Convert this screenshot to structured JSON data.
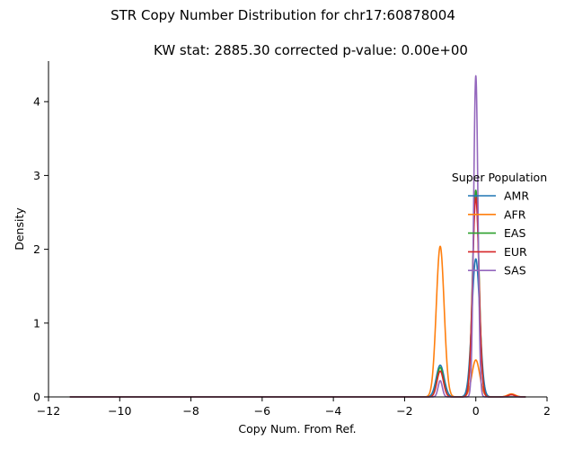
{
  "chart_data": {
    "type": "line",
    "suptitle": "STR Copy Number Distribution for chr17:60878004",
    "title": "KW stat: 2885.30    corrected p-value: 0.00e+00",
    "xlabel": "Copy Num. From Ref.",
    "ylabel": "Density",
    "xlim": [
      -12,
      2
    ],
    "ylim": [
      0,
      4.55
    ],
    "xticks": [
      -12,
      -10,
      -8,
      -6,
      -4,
      -2,
      0,
      2
    ],
    "yticks": [
      0,
      1,
      2,
      3,
      4
    ],
    "xtick_labels": [
      "−12",
      "−10",
      "−8",
      "−6",
      "−4",
      "−2",
      "0",
      "2"
    ],
    "ytick_labels": [
      "0",
      "1",
      "2",
      "3",
      "4"
    ],
    "grid": false,
    "legend": {
      "title": "Super Population",
      "placement": "right"
    },
    "series": [
      {
        "name": "AMR",
        "color": "#1f77b4",
        "x_range": [
          -11.4,
          1.4
        ],
        "peaks": [
          {
            "x": -1,
            "height": 0.43,
            "width": 0.11
          },
          {
            "x": 0,
            "height": 1.87,
            "width": 0.11
          },
          {
            "x": 1,
            "height": 0.03,
            "width": 0.11
          }
        ]
      },
      {
        "name": "AFR",
        "color": "#ff7f0e",
        "x_range": [
          -11.4,
          1.4
        ],
        "peaks": [
          {
            "x": -1,
            "height": 2.04,
            "width": 0.11
          },
          {
            "x": 0,
            "height": 0.5,
            "width": 0.11
          },
          {
            "x": 1,
            "height": 0.04,
            "width": 0.11
          }
        ]
      },
      {
        "name": "EAS",
        "color": "#2ca02c",
        "x_range": [
          -11.4,
          1.4
        ],
        "peaks": [
          {
            "x": -1,
            "height": 0.4,
            "width": 0.09
          },
          {
            "x": 0,
            "height": 2.8,
            "width": 0.09
          }
        ]
      },
      {
        "name": "EUR",
        "color": "#d62728",
        "x_range": [
          -11.4,
          1.4
        ],
        "peaks": [
          {
            "x": -1,
            "height": 0.35,
            "width": 0.09
          },
          {
            "x": 0,
            "height": 2.7,
            "width": 0.09
          },
          {
            "x": 1,
            "height": 0.03,
            "width": 0.09
          }
        ]
      },
      {
        "name": "SAS",
        "color": "#9467bd",
        "x_range": [
          -11.4,
          1.4
        ],
        "peaks": [
          {
            "x": -1,
            "height": 0.22,
            "width": 0.06
          },
          {
            "x": 0,
            "height": 4.35,
            "width": 0.06
          }
        ]
      }
    ]
  }
}
